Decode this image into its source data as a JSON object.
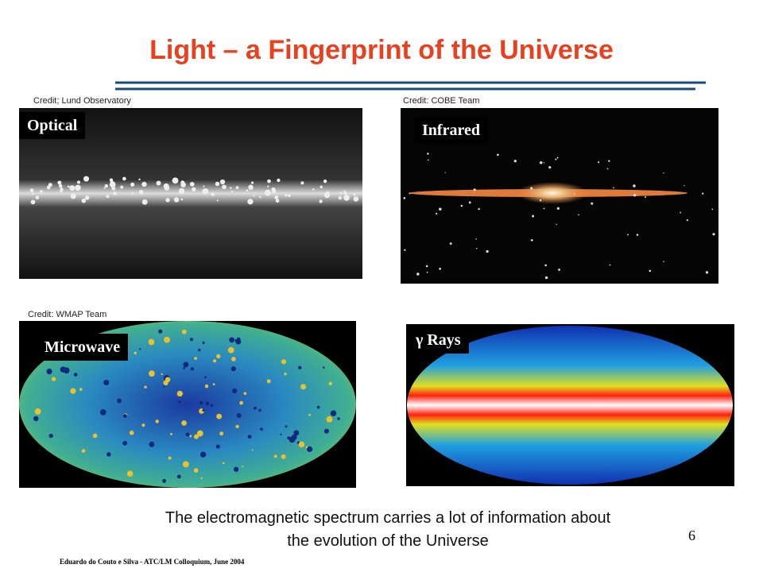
{
  "slide": {
    "title": "Light – a Fingerprint of the Universe",
    "panels": [
      {
        "credit": "Credit; Lund Observatory",
        "label": "Optical"
      },
      {
        "credit": "Credit: COBE Team",
        "label": "Infrared"
      },
      {
        "credit": "Credit: WMAP Team",
        "label": "Microwave"
      },
      {
        "label": "γ Rays"
      }
    ],
    "caption": [
      "The electromagnetic spectrum carries a lot of information about",
      "the evolution of the Universe"
    ],
    "page_number": "6",
    "footer": "Eduardo do Couto e Silva -  ATC/LM Colloquium, June 2004"
  }
}
